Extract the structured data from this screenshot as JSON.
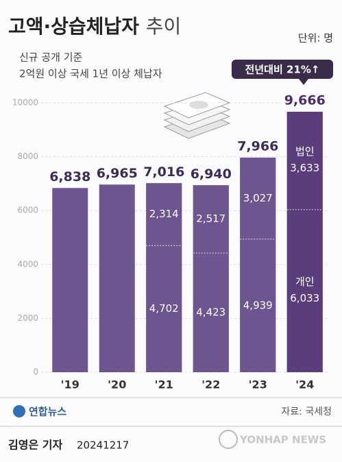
{
  "chart_data": {
    "type": "bar",
    "title": "고액·상습체납자",
    "title_suffix": "추이",
    "unit": "단위: 명",
    "subtitle": [
      "신규 공개 기준",
      "2억원 이상 국세 1년 이상 체납자"
    ],
    "callout": "전년대비 21%↑",
    "categories": [
      "'19",
      "'20",
      "'21",
      "'22",
      "'23",
      "'24"
    ],
    "values": [
      6838,
      6965,
      7016,
      6940,
      7966,
      9666
    ],
    "value_labels": [
      "6,838",
      "6,965",
      "7,016",
      "6,940",
      "7,966",
      "9,666"
    ],
    "colors": [
      "#6d5590",
      "#6d5590",
      "#6d5590",
      "#6d5590",
      "#6d5590",
      "#5a3e7c"
    ],
    "series": [
      {
        "name": "개인",
        "values": [
          null,
          null,
          4702,
          4423,
          4939,
          6033
        ],
        "value_labels": [
          null,
          null,
          "4,702",
          "4,423",
          "4,939",
          "6,033"
        ]
      },
      {
        "name": "법인",
        "values": [
          null,
          null,
          2314,
          2517,
          3027,
          3633
        ],
        "value_labels": [
          null,
          null,
          "2,314",
          "2,517",
          "3,027",
          "3,633"
        ]
      }
    ],
    "ylim": [
      0,
      10000
    ],
    "yticks": [
      0,
      2000,
      4000,
      6000,
      8000,
      10000
    ],
    "grid": true,
    "source": "자료: 국세청",
    "logo": "연합뉴스",
    "credit": "김영은 기자",
    "date": "20241217",
    "watermark": "YONHAP NEWS"
  }
}
